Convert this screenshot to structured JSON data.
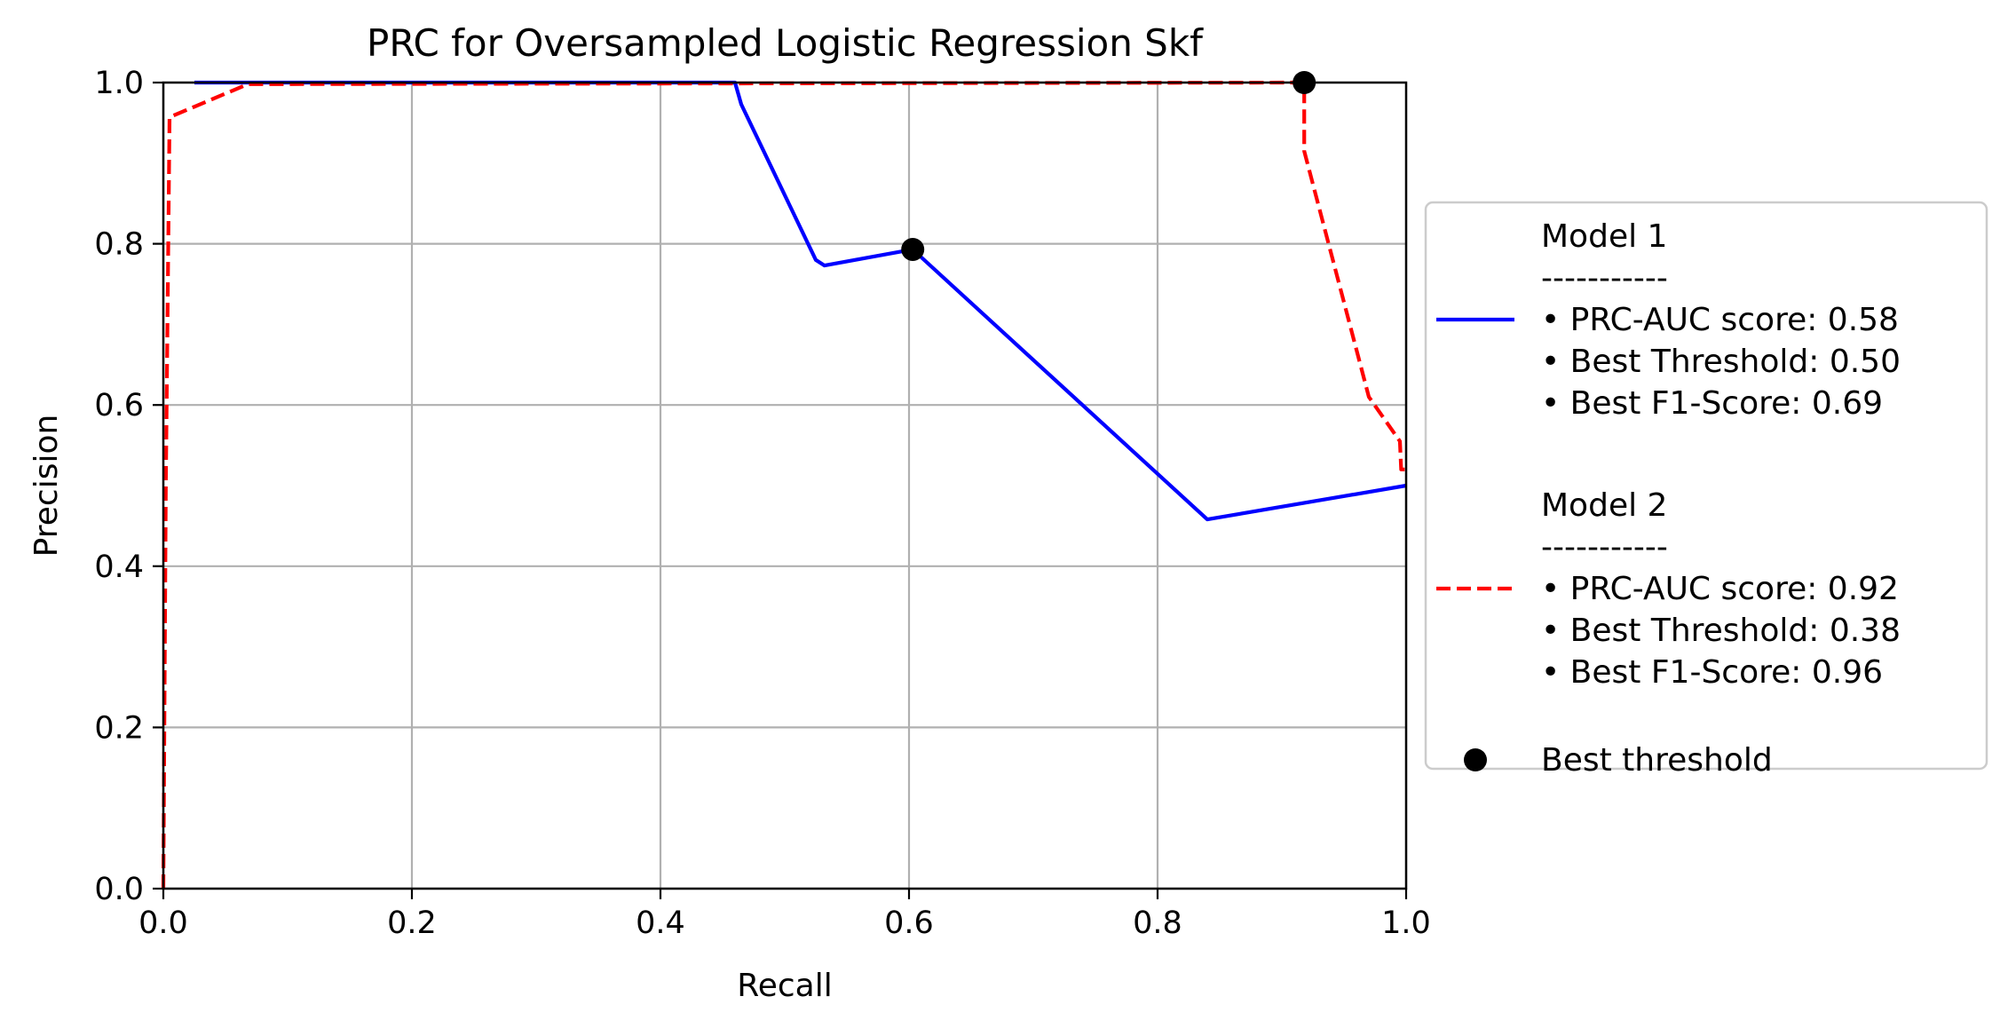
{
  "chart_data": {
    "type": "line",
    "title": "PRC for Oversampled Logistic Regression Skf",
    "xlabel": "Recall",
    "ylabel": "Precision",
    "xlim": [
      0.0,
      1.0
    ],
    "ylim": [
      0.0,
      1.0
    ],
    "grid": true,
    "x_ticks": [
      "0.0",
      "0.2",
      "0.4",
      "0.6",
      "0.8",
      "1.0"
    ],
    "y_ticks": [
      "0.0",
      "0.2",
      "0.4",
      "0.6",
      "0.8",
      "1.0"
    ],
    "legend_placement": "center-right outside",
    "series": [
      {
        "name": "Model 1",
        "color": "#0000ff",
        "style": "solid",
        "legend_lines": [
          "Model 1",
          "-----------",
          " • PRC-AUC score: 0.58",
          " • Best Threshold: 0.50",
          " • Best F1-Score: 0.69"
        ],
        "points": [
          [
            0.025,
            1.0
          ],
          [
            0.46,
            1.0
          ],
          [
            0.465,
            0.973
          ],
          [
            0.525,
            0.78
          ],
          [
            0.532,
            0.773
          ],
          [
            0.603,
            0.793
          ],
          [
            0.84,
            0.458
          ],
          [
            1.0,
            0.5
          ]
        ],
        "best_point": [
          0.603,
          0.793
        ]
      },
      {
        "name": "Model 2",
        "color": "#ff0000",
        "style": "dashed",
        "legend_lines": [
          "Model 2",
          "-----------",
          " • PRC-AUC score: 0.92",
          " • Best Threshold: 0.38",
          " • Best F1-Score: 0.96"
        ],
        "points": [
          [
            0.0,
            0.0
          ],
          [
            0.002,
            0.5
          ],
          [
            0.005,
            0.957
          ],
          [
            0.068,
            0.998
          ],
          [
            0.918,
            1.0
          ],
          [
            0.918,
            0.915
          ],
          [
            0.97,
            0.61
          ],
          [
            0.995,
            0.555
          ],
          [
            0.996,
            0.52
          ],
          [
            1.0,
            0.52
          ]
        ],
        "best_point": [
          0.918,
          1.0
        ]
      }
    ],
    "marker_legend": "Best threshold"
  }
}
